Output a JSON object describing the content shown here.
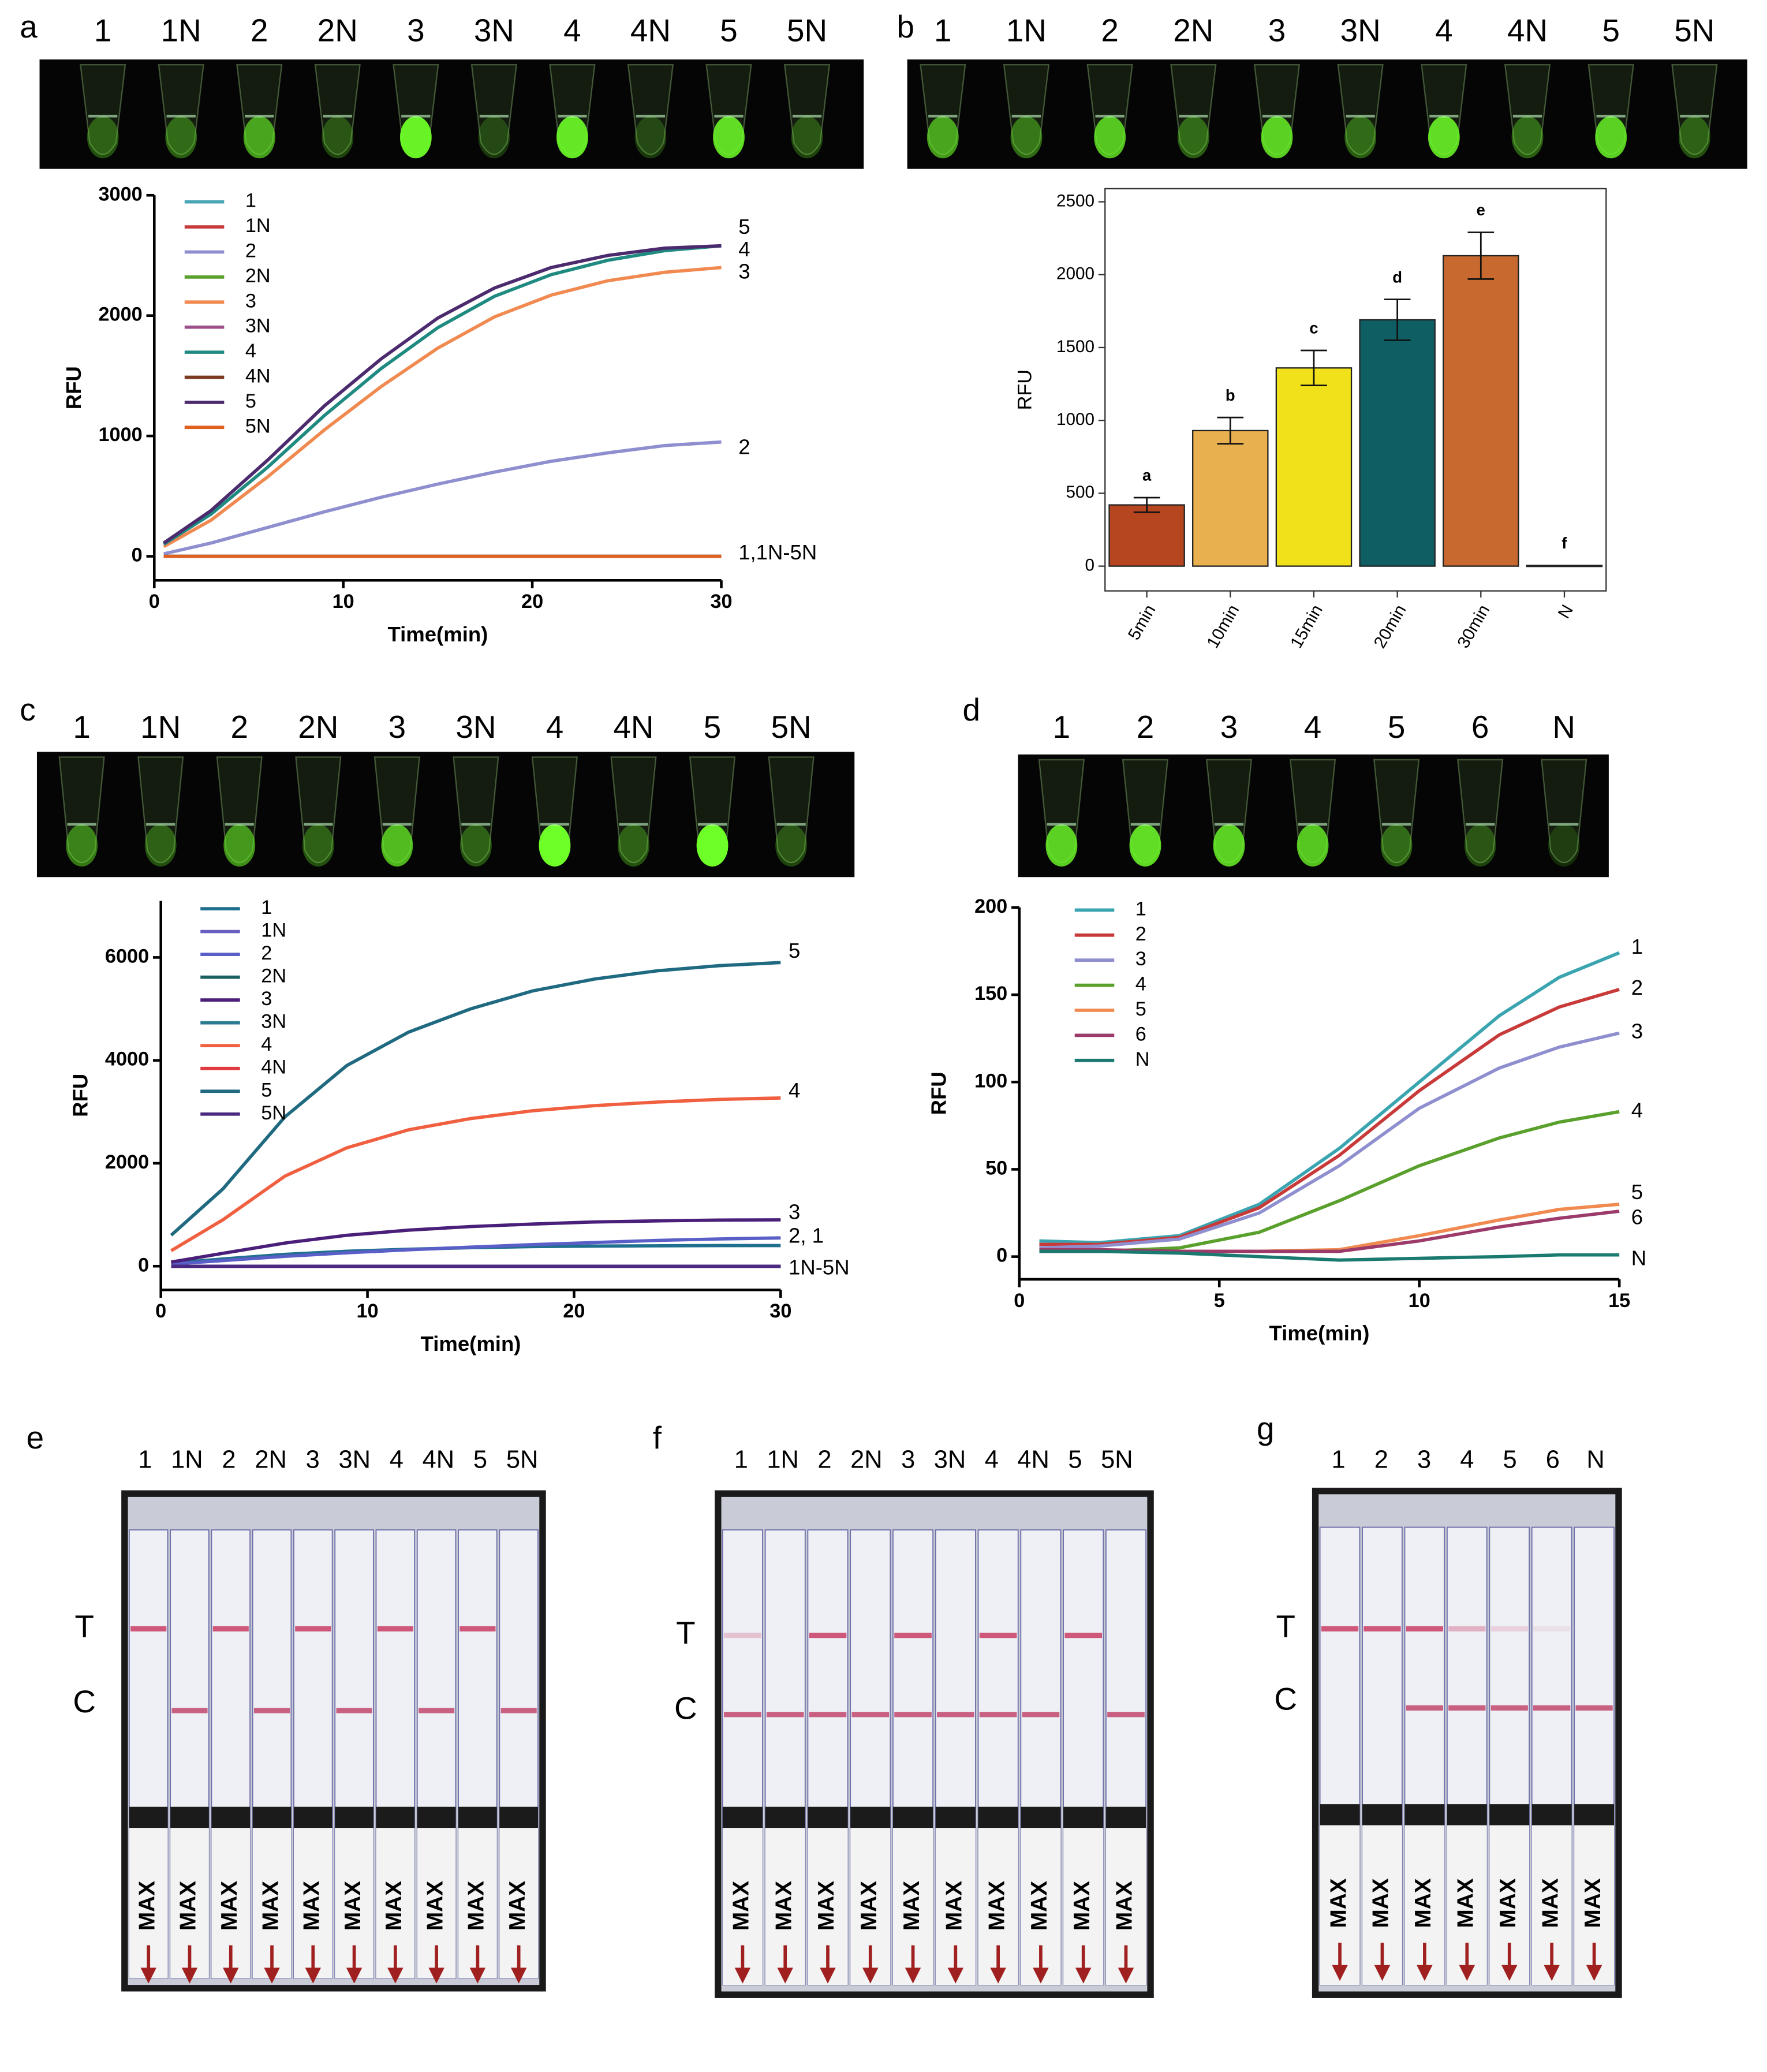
{
  "chart_data": [
    {
      "type": "line",
      "x_label": "Time(min)",
      "y_label": "RFU",
      "x": [
        0.5,
        3,
        6,
        9,
        12,
        15,
        18,
        21,
        24,
        27,
        30
      ],
      "xlim": [
        0,
        30
      ],
      "xticks": [
        0,
        10,
        20,
        30
      ],
      "ylim": [
        -200,
        3000
      ],
      "yticks": [
        0,
        1000,
        2000,
        3000
      ],
      "series": [
        {
          "name": "1",
          "color": "#4aa6b5",
          "values": [
            0,
            0,
            0,
            0,
            0,
            0,
            0,
            0,
            0,
            0,
            0
          ]
        },
        {
          "name": "1N",
          "color": "#c83a3a",
          "values": [
            0,
            0,
            0,
            0,
            0,
            0,
            0,
            0,
            0,
            0,
            0
          ]
        },
        {
          "name": "2",
          "color": "#8f8fd0",
          "values": [
            20,
            110,
            240,
            370,
            490,
            600,
            700,
            790,
            860,
            920,
            950
          ]
        },
        {
          "name": "2N",
          "color": "#5aa02c",
          "values": [
            0,
            0,
            0,
            0,
            0,
            0,
            0,
            0,
            0,
            0,
            0
          ]
        },
        {
          "name": "3",
          "color": "#f08a50",
          "values": [
            80,
            300,
            660,
            1050,
            1410,
            1730,
            1990,
            2170,
            2290,
            2360,
            2400
          ]
        },
        {
          "name": "3N",
          "color": "#9c4f8a",
          "values": [
            0,
            0,
            0,
            0,
            0,
            0,
            0,
            0,
            0,
            0,
            0
          ]
        },
        {
          "name": "4",
          "color": "#1f8a80",
          "values": [
            100,
            350,
            740,
            1170,
            1560,
            1900,
            2160,
            2340,
            2460,
            2540,
            2580
          ]
        },
        {
          "name": "4N",
          "color": "#7a3a20",
          "values": [
            0,
            0,
            0,
            0,
            0,
            0,
            0,
            0,
            0,
            0,
            0
          ]
        },
        {
          "name": "5",
          "color": "#4b2a6e",
          "values": [
            110,
            380,
            800,
            1250,
            1640,
            1980,
            2230,
            2400,
            2500,
            2560,
            2580
          ]
        },
        {
          "name": "5N",
          "color": "#e06020",
          "values": [
            0,
            0,
            0,
            0,
            0,
            0,
            0,
            0,
            0,
            0,
            0
          ]
        }
      ],
      "annotations": [
        "5",
        "4",
        "3",
        "2",
        "1,1N-5N"
      ]
    },
    {
      "type": "bar",
      "y_label": "RFU",
      "categories": [
        "5min",
        "10min",
        "15min",
        "20min",
        "30min",
        "N"
      ],
      "values": [
        420,
        930,
        1360,
        1690,
        2130,
        5
      ],
      "errors": [
        50,
        90,
        120,
        140,
        160,
        0
      ],
      "colors": [
        "#b5461f",
        "#e8b04f",
        "#f0e11a",
        "#0f5e64",
        "#c86a30",
        "#555555"
      ],
      "annotations": [
        "a",
        "b",
        "c",
        "d",
        "e",
        "f"
      ],
      "ylim": [
        -170,
        2590
      ],
      "yticks": [
        0,
        500,
        1000,
        1500,
        2000,
        2500
      ]
    },
    {
      "type": "line",
      "x_label": "Time(min)",
      "y_label": "RFU",
      "x": [
        0.5,
        3,
        6,
        9,
        12,
        15,
        18,
        21,
        24,
        27,
        30
      ],
      "xlim": [
        0,
        30
      ],
      "xticks": [
        0,
        10,
        20,
        30
      ],
      "ylim": [
        -460,
        7100
      ],
      "yticks": [
        0,
        2000,
        4000,
        6000
      ],
      "series": [
        {
          "name": "1",
          "color": "#1f6f8f",
          "values": [
            60,
            140,
            230,
            290,
            330,
            360,
            380,
            390,
            395,
            400,
            400
          ]
        },
        {
          "name": "1N",
          "color": "#6a5fc0",
          "values": [
            0,
            0,
            0,
            0,
            0,
            0,
            0,
            0,
            0,
            0,
            0
          ]
        },
        {
          "name": "2",
          "color": "#5a5fc8",
          "values": [
            40,
            110,
            190,
            260,
            320,
            370,
            420,
            460,
            500,
            530,
            550
          ]
        },
        {
          "name": "2N",
          "color": "#1a6060",
          "values": [
            0,
            0,
            0,
            0,
            0,
            0,
            0,
            0,
            0,
            0,
            0
          ]
        },
        {
          "name": "3",
          "color": "#4a1f7a",
          "values": [
            80,
            250,
            450,
            600,
            700,
            770,
            820,
            860,
            880,
            895,
            900
          ]
        },
        {
          "name": "3N",
          "color": "#2a7a90",
          "values": [
            0,
            0,
            0,
            0,
            0,
            0,
            0,
            0,
            0,
            0,
            0
          ]
        },
        {
          "name": "4",
          "color": "#f06040",
          "values": [
            300,
            900,
            1750,
            2300,
            2650,
            2870,
            3020,
            3120,
            3190,
            3240,
            3270
          ]
        },
        {
          "name": "4N",
          "color": "#e03a40",
          "values": [
            0,
            0,
            0,
            0,
            0,
            0,
            0,
            0,
            0,
            0,
            0
          ]
        },
        {
          "name": "5",
          "color": "#1f6a80",
          "values": [
            600,
            1500,
            2900,
            3900,
            4550,
            5000,
            5350,
            5580,
            5740,
            5840,
            5900
          ]
        },
        {
          "name": "5N",
          "color": "#4a2a80",
          "values": [
            0,
            0,
            0,
            0,
            0,
            0,
            0,
            0,
            0,
            0,
            0
          ]
        }
      ],
      "annotations": [
        "5",
        "4",
        "3",
        "2, 1",
        "1N-5N"
      ]
    },
    {
      "type": "line",
      "x_label": "Time(min)",
      "y_label": "RFU",
      "x": [
        0.5,
        2,
        4,
        6,
        8,
        10,
        12,
        13.5,
        15
      ],
      "xlim": [
        0,
        15
      ],
      "xticks": [
        0,
        5,
        10,
        15
      ],
      "ylim": [
        -13,
        200
      ],
      "yticks": [
        0,
        50,
        100,
        150,
        200
      ],
      "series": [
        {
          "name": "1",
          "color": "#3aa5b0",
          "values": [
            9,
            8,
            12,
            30,
            62,
            100,
            138,
            160,
            174
          ]
        },
        {
          "name": "2",
          "color": "#c83a3a",
          "values": [
            7,
            7,
            11,
            28,
            58,
            95,
            127,
            143,
            153
          ]
        },
        {
          "name": "3",
          "color": "#8f8fd0",
          "values": [
            5,
            6,
            10,
            25,
            52,
            85,
            108,
            120,
            128
          ]
        },
        {
          "name": "4",
          "color": "#5aa02c",
          "values": [
            3,
            3,
            5,
            14,
            32,
            52,
            68,
            77,
            83
          ]
        },
        {
          "name": "5",
          "color": "#f08a50",
          "values": [
            3,
            3,
            3,
            3,
            4,
            12,
            21,
            27,
            30
          ]
        },
        {
          "name": "6",
          "color": "#9c3a6a",
          "values": [
            4,
            4,
            3,
            3,
            3,
            9,
            17,
            22,
            26
          ]
        },
        {
          "name": "N",
          "color": "#1a7a70",
          "values": [
            3,
            3,
            2,
            0,
            -2,
            -1,
            0,
            1,
            1
          ]
        }
      ],
      "annotations": [
        "1",
        "2",
        "3",
        "4",
        "5",
        "6",
        "N"
      ]
    }
  ],
  "photos": [
    {
      "letter": "a",
      "labels": [
        "1",
        "1N",
        "2",
        "2N",
        "3",
        "3N",
        "4",
        "4N",
        "5",
        "5N"
      ]
    },
    {
      "letter": "b",
      "labels": [
        "1",
        "1N",
        "2",
        "2N",
        "3",
        "3N",
        "4",
        "4N",
        "5",
        "5N"
      ]
    },
    {
      "letter": "c",
      "labels": [
        "1",
        "1N",
        "2",
        "2N",
        "3",
        "3N",
        "4",
        "4N",
        "5",
        "5N"
      ]
    },
    {
      "letter": "d",
      "labels": [
        "1",
        "2",
        "3",
        "4",
        "5",
        "6",
        "N"
      ]
    }
  ],
  "strips": [
    {
      "letter": "e",
      "labels": [
        "1",
        "1N",
        "2",
        "2N",
        "3",
        "3N",
        "4",
        "4N",
        "5",
        "5N"
      ]
    },
    {
      "letter": "f",
      "labels": [
        "1",
        "1N",
        "2",
        "2N",
        "3",
        "3N",
        "4",
        "4N",
        "5",
        "5N"
      ]
    },
    {
      "letter": "g",
      "labels": [
        "1",
        "2",
        "3",
        "4",
        "5",
        "6",
        "N"
      ]
    }
  ],
  "strip_marks": {
    "t": "T",
    "c": "C",
    "max": "MAX"
  }
}
